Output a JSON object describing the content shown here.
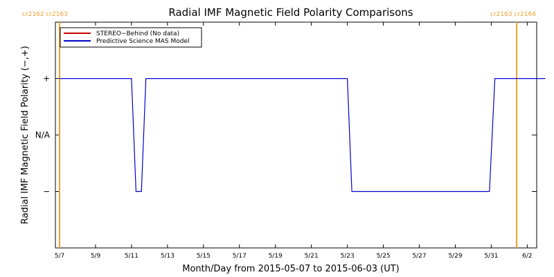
{
  "chart_data": {
    "type": "line",
    "title": "Radial IMF Magnetic Field Polarity Comparisons",
    "xlabel": "Month/Day from 2015-05-07 to 2015-06-03 (UT)",
    "ylabel": "Radial IMF Magnetic Field Polarity (−,+)",
    "x_range": [
      "2015-05-07",
      "2015-06-03"
    ],
    "x_ticks": [
      "5/7",
      "5/9",
      "5/11",
      "5/13",
      "5/15",
      "5/17",
      "5/19",
      "5/21",
      "5/23",
      "5/25",
      "5/27",
      "5/29",
      "5/31",
      "6/2"
    ],
    "y_ticks": [
      "+",
      "N/A",
      "−"
    ],
    "y_values": [
      1,
      0,
      -1
    ],
    "ylim": [
      -2,
      2
    ],
    "grid": false,
    "legend_position": "top-left",
    "carrington_markers": [
      {
        "date": "2015-05-07",
        "label": "cr2162 cr2163"
      },
      {
        "date": "2015-06-03",
        "label": "cr2163 cr2164"
      }
    ],
    "series": [
      {
        "name": "STEREO−Behind (No data)",
        "color": "#cc0000",
        "x": [],
        "y": []
      },
      {
        "name": "Predictive Science MAS Model",
        "color": "#0000cc",
        "x": [
          "2015-05-07",
          "2015-05-11",
          "2015-05-11.25",
          "2015-05-11.55",
          "2015-05-11.8",
          "2015-05-23",
          "2015-05-23.25",
          "2015-05-30.9",
          "2015-05-31.2",
          "2015-06-03"
        ],
        "y": [
          1,
          1,
          -1,
          -1,
          1,
          1,
          -1,
          -1,
          1,
          1
        ]
      }
    ]
  }
}
